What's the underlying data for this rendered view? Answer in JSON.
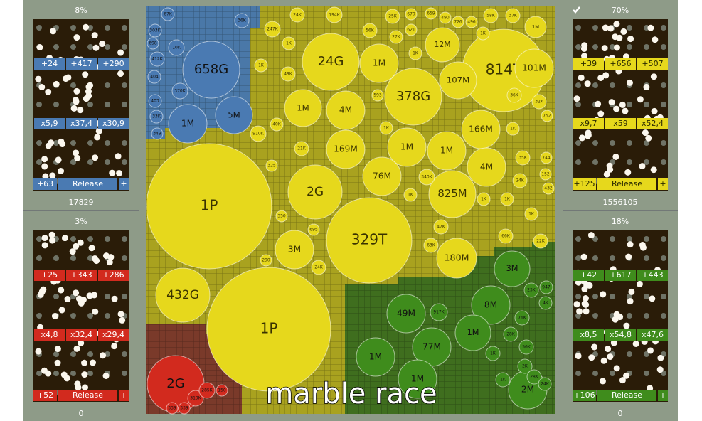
{
  "panels": [
    {
      "percent": "8%",
      "row1": [
        "+24",
        "+417",
        "+290"
      ],
      "row2": [
        "x5,9",
        "x37,4",
        "x30,9"
      ],
      "bottom": [
        "+63",
        "Release",
        "+"
      ],
      "score": "17829"
    },
    {
      "percent": "3%",
      "row1": [
        "+25",
        "+343",
        "+286"
      ],
      "row2": [
        "x4,8",
        "x32,4",
        "x29,4"
      ],
      "bottom": [
        "+52",
        "Release",
        "+"
      ],
      "score": "0"
    },
    {
      "percent": "70%",
      "row1": [
        "+39",
        "+656",
        "+507"
      ],
      "row2": [
        "x9,7",
        "x59",
        "x52,4"
      ],
      "bottom": [
        "+125",
        "Release",
        "+"
      ],
      "score": "1556105"
    },
    {
      "percent": "18%",
      "row1": [
        "+42",
        "+617",
        "+443"
      ],
      "row2": [
        "x8,5",
        "x54,8",
        "x47,6"
      ],
      "bottom": [
        "+106",
        "Release",
        "+"
      ],
      "score": "0"
    }
  ],
  "circles": [
    "1P",
    "1P",
    "432G",
    "329T",
    "2G",
    "3M",
    "24G",
    "1M",
    "378G",
    "814T",
    "101M",
    "107M",
    "12M",
    "1M",
    "4M",
    "169M",
    "76M",
    "1M",
    "1M",
    "166M",
    "4M",
    "825M",
    "180M",
    "658G",
    "5M",
    "1M",
    "36K",
    "10K",
    "370K",
    "403",
    "33K",
    "349",
    "404",
    "412K",
    "698",
    "303K",
    "67K",
    "3M",
    "8M",
    "1M",
    "49M",
    "77M",
    "1M",
    "1M",
    "2M",
    "917K",
    "1K",
    "28K",
    "76K",
    "56K",
    "2K",
    "1K",
    "28K",
    "24K",
    "23K",
    "4K",
    "947",
    "2G",
    "319K",
    "285K",
    "150",
    "339",
    "339",
    "24K",
    "194K",
    "247K",
    "1K",
    "56K",
    "25K",
    "27K",
    "621",
    "670",
    "659",
    "490",
    "726",
    "496",
    "58K",
    "37K",
    "1K",
    "1K",
    "1K",
    "49K",
    "593",
    "36K",
    "32K",
    "752",
    "40K",
    "1K",
    "910K",
    "1K",
    "21K",
    "325",
    "35K",
    "744",
    "24K",
    "152",
    "432",
    "340K",
    "1K",
    "1K",
    "1K",
    "1K",
    "350",
    "695",
    "47K",
    "66K",
    "22K",
    "63K",
    "290",
    "24K",
    "1M"
  ],
  "caption": "marble race"
}
